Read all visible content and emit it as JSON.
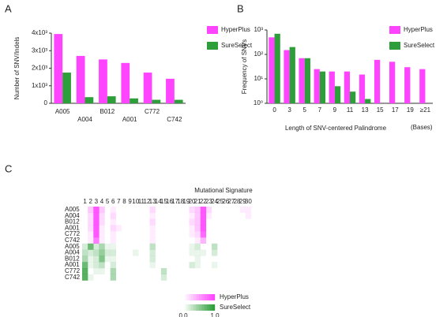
{
  "chart_data": [
    {
      "type": "bar",
      "panel_label": "A",
      "y_label": "Number of SNV/Indels",
      "categories": [
        "A005",
        "A004",
        "B012",
        "A001",
        "C772",
        "C742"
      ],
      "series": [
        {
          "name": "HyperPlus",
          "color": "#ff44ff",
          "values": [
            3950,
            2700,
            2500,
            2300,
            1750,
            1400
          ]
        },
        {
          "name": "SureSelect",
          "color": "#2e9e3a",
          "values": [
            1750,
            350,
            400,
            280,
            200,
            200
          ]
        }
      ],
      "ylim": [
        0,
        4000
      ],
      "yticks": [
        0,
        {
          "value": 1000,
          "label": "1x10³"
        },
        {
          "value": 2000,
          "label": "2x10³"
        },
        {
          "value": 3000,
          "label": "3x10³"
        },
        {
          "value": 4000,
          "label": "4x10³"
        }
      ]
    },
    {
      "type": "bar",
      "panel_label": "B",
      "y_label": "Frequency of SNVs",
      "x_label": "Length of SNV-centered Palindrome",
      "x_unit": "(Bases)",
      "categories": [
        "0",
        "3",
        "5",
        "7",
        "9",
        "11",
        "13",
        "15",
        "17",
        "19",
        "≥21"
      ],
      "series": [
        {
          "name": "HyperPlus",
          "color": "#ff44ff",
          "values": [
            500,
            150,
            70,
            25,
            20,
            20,
            15,
            60,
            50,
            30,
            25
          ]
        },
        {
          "name": "SureSelect",
          "color": "#2e9e3a",
          "values": [
            700,
            200,
            70,
            20,
            5,
            3,
            1.5,
            null,
            null,
            null,
            null
          ]
        }
      ],
      "log_scale": true,
      "ylim": [
        1,
        1000
      ],
      "yticks": [
        {
          "value": 1,
          "label": "10⁰"
        },
        {
          "value": 10,
          "label": "10¹"
        },
        {
          "value": 100,
          "label": "10²"
        },
        {
          "value": 1000,
          "label": "10³"
        }
      ]
    },
    {
      "type": "heatmap",
      "panel_label": "C",
      "title": "Mutational Signature",
      "x": [
        1,
        2,
        3,
        4,
        5,
        6,
        7,
        8,
        9,
        10,
        11,
        12,
        13,
        14,
        15,
        16,
        17,
        18,
        19,
        20,
        21,
        22,
        23,
        24,
        25,
        26,
        27,
        28,
        29,
        30
      ],
      "series": [
        {
          "name": "HyperPlus",
          "color": "#ff44ff",
          "rows": [
            "A005",
            "A004",
            "B012",
            "A001",
            "C772",
            "C742"
          ],
          "values": [
            [
              0,
              0.3,
              0.9,
              0.3,
              0,
              0.1,
              0,
              0,
              0,
              0,
              0,
              0,
              0.2,
              0,
              0,
              0,
              0,
              0,
              0,
              0.2,
              0.3,
              0.9,
              0.2,
              0,
              0,
              0,
              0,
              0,
              0.1,
              0.1
            ],
            [
              0,
              0.2,
              0.9,
              0.2,
              0,
              0.2,
              0,
              0,
              0,
              0,
              0,
              0,
              0.1,
              0,
              0,
              0,
              0,
              0,
              0,
              0.1,
              0.3,
              0.9,
              0.1,
              0,
              0,
              0,
              0,
              0,
              0,
              0.1
            ],
            [
              0,
              0.2,
              0.9,
              0.2,
              0,
              0.1,
              0,
              0,
              0,
              0,
              0,
              0,
              0.2,
              0,
              0,
              0,
              0,
              0,
              0,
              0.2,
              0.3,
              0.9,
              0,
              0,
              0,
              0,
              0,
              0,
              0,
              0
            ],
            [
              0,
              0.2,
              0.9,
              0.1,
              0,
              0.2,
              0.1,
              0,
              0,
              0,
              0,
              0,
              0.1,
              0,
              0,
              0,
              0,
              0,
              0,
              0.1,
              0.3,
              0.9,
              0,
              0,
              0,
              0,
              0,
              0,
              0,
              0
            ],
            [
              0,
              0.1,
              0.9,
              0.1,
              0,
              0.1,
              0,
              0,
              0,
              0,
              0,
              0,
              0.1,
              0,
              0,
              0,
              0,
              0,
              0,
              0.1,
              0.2,
              0.8,
              0,
              0,
              0,
              0,
              0,
              0,
              0,
              0
            ],
            [
              0,
              0.1,
              0.7,
              0.1,
              0,
              0.1,
              0,
              0,
              0,
              0,
              0,
              0,
              0.1,
              0,
              0,
              0,
              0,
              0,
              0,
              0,
              0.1,
              0.4,
              0,
              0,
              0,
              0,
              0,
              0,
              0,
              0
            ]
          ]
        },
        {
          "name": "SureSelect",
          "color": "#2e9e3a",
          "rows": [
            "A005",
            "A004",
            "B012",
            "A001",
            "C772",
            "C742"
          ],
          "values": [
            [
              0.2,
              0.7,
              0.2,
              0.4,
              0.1,
              0.1,
              0,
              0,
              0,
              0,
              0,
              0,
              0.3,
              0,
              0,
              0,
              0,
              0,
              0,
              0.1,
              0.2,
              0,
              0,
              0.3,
              0,
              0,
              0,
              0,
              0,
              0
            ],
            [
              0.3,
              0.2,
              0.3,
              0.5,
              0.2,
              0.2,
              0,
              0,
              0,
              0.1,
              0,
              0,
              0.2,
              0,
              0,
              0,
              0,
              0,
              0,
              0.1,
              0.1,
              0.1,
              0,
              0.2,
              0,
              0,
              0,
              0,
              0,
              0
            ],
            [
              0.4,
              0.1,
              0.2,
              0.6,
              0.1,
              0.1,
              0,
              0,
              0,
              0,
              0,
              0,
              0.2,
              0,
              0,
              0,
              0,
              0,
              0,
              0,
              0.1,
              0,
              0,
              0,
              0,
              0,
              0,
              0,
              0,
              0
            ],
            [
              0.7,
              0.1,
              0.2,
              0.3,
              0,
              0.2,
              0,
              0,
              0,
              0,
              0,
              0,
              0.1,
              0,
              0,
              0,
              0,
              0,
              0,
              0.2,
              0.1,
              0,
              0,
              0.1,
              0,
              0,
              0,
              0,
              0,
              0
            ],
            [
              0.8,
              0,
              0.1,
              0.1,
              0,
              0.4,
              0,
              0,
              0,
              0,
              0,
              0,
              0,
              0,
              0.3,
              0,
              0,
              0,
              0,
              0,
              0,
              0,
              0,
              0,
              0,
              0,
              0,
              0,
              0,
              0
            ],
            [
              0.8,
              0.1,
              0,
              0,
              0,
              0.4,
              0,
              0,
              0,
              0,
              0,
              0,
              0,
              0,
              0.2,
              0,
              0,
              0,
              0,
              0,
              0,
              0,
              0,
              0,
              0,
              0,
              0,
              0,
              0,
              0
            ]
          ]
        }
      ],
      "zlim": [
        0,
        1
      ],
      "colorbar_ticks": [
        {
          "value": 0,
          "label": "0.0"
        },
        {
          "value": 1,
          "label": "1.0"
        }
      ]
    }
  ]
}
